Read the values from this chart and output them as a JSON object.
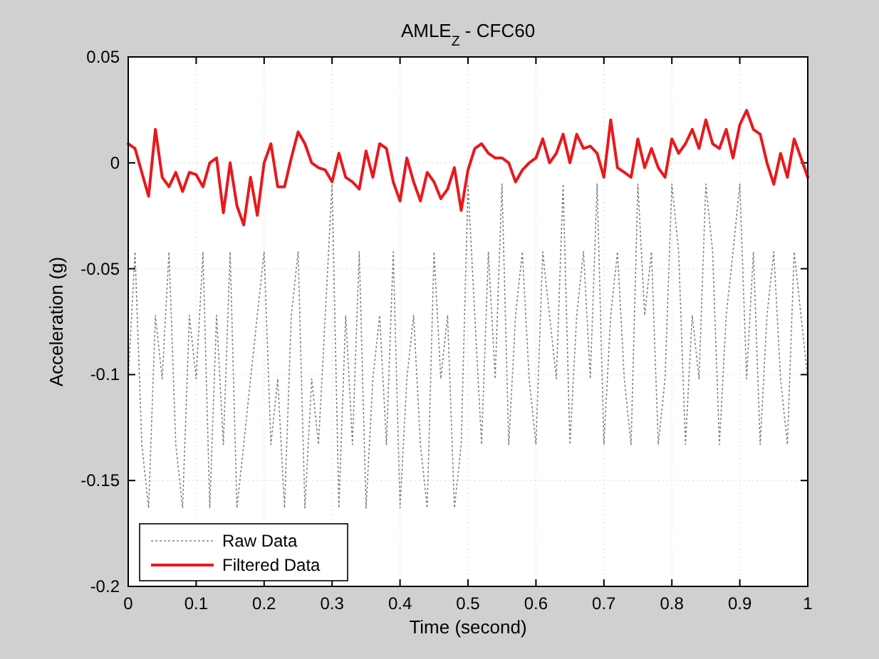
{
  "chart_data": {
    "type": "line",
    "title": "AMLE$_{Z}$ - CFC60",
    "xlabel": "Time (second)",
    "ylabel": "Acceleration (g)",
    "x": [
      0,
      0.01,
      0.02,
      0.03,
      0.04,
      0.05,
      0.06,
      0.07,
      0.08,
      0.09,
      0.1,
      0.11,
      0.12,
      0.13,
      0.14,
      0.15,
      0.16,
      0.17,
      0.18,
      0.19,
      0.2,
      0.21,
      0.22,
      0.23,
      0.24,
      0.25,
      0.26,
      0.27,
      0.28,
      0.29,
      0.3,
      0.31,
      0.32,
      0.33,
      0.34,
      0.35,
      0.36,
      0.37,
      0.38,
      0.39,
      0.4,
      0.41,
      0.42,
      0.43,
      0.44,
      0.45,
      0.46,
      0.47,
      0.48,
      0.49,
      0.5,
      0.51,
      0.52,
      0.53,
      0.54,
      0.55,
      0.56,
      0.57,
      0.58,
      0.59,
      0.6,
      0.61,
      0.62,
      0.63,
      0.64,
      0.65,
      0.66,
      0.67,
      0.68,
      0.69,
      0.7,
      0.71,
      0.72,
      0.73,
      0.74,
      0.75,
      0.76,
      0.77,
      0.78,
      0.79,
      0.8,
      0.81,
      0.82,
      0.83,
      0.84,
      0.85,
      0.86,
      0.87,
      0.88,
      0.89,
      0.9,
      0.91,
      0.92,
      0.93,
      0.94,
      0.95,
      0.96,
      0.97,
      0.98,
      0.99,
      1
    ],
    "series": [
      {
        "name": "Raw Data",
        "color": "#808080",
        "line_style": "dotted",
        "values": [
          -0.102,
          -0.042,
          -0.133,
          -0.163,
          -0.072,
          -0.102,
          -0.042,
          -0.133,
          -0.163,
          -0.072,
          -0.102,
          -0.042,
          -0.163,
          -0.072,
          -0.133,
          -0.042,
          -0.163,
          -0.133,
          -0.102,
          -0.072,
          -0.042,
          -0.133,
          -0.102,
          -0.163,
          -0.072,
          -0.042,
          -0.163,
          -0.102,
          -0.133,
          -0.072,
          -0.01,
          -0.163,
          -0.072,
          -0.133,
          -0.042,
          -0.163,
          -0.102,
          -0.072,
          -0.133,
          -0.042,
          -0.163,
          -0.102,
          -0.072,
          -0.133,
          -0.163,
          -0.042,
          -0.102,
          -0.072,
          -0.163,
          -0.133,
          -0.01,
          -0.072,
          -0.133,
          -0.042,
          -0.102,
          -0.01,
          -0.133,
          -0.072,
          -0.042,
          -0.102,
          -0.133,
          -0.042,
          -0.072,
          -0.102,
          -0.01,
          -0.133,
          -0.072,
          -0.042,
          -0.102,
          -0.01,
          -0.133,
          -0.072,
          -0.042,
          -0.102,
          -0.133,
          -0.01,
          -0.072,
          -0.042,
          -0.133,
          -0.102,
          -0.01,
          -0.042,
          -0.133,
          -0.072,
          -0.102,
          -0.01,
          -0.042,
          -0.133,
          -0.072,
          -0.042,
          -0.01,
          -0.102,
          -0.042,
          -0.133,
          -0.072,
          -0.042,
          -0.102,
          -0.133,
          -0.042,
          -0.072,
          -0.102
        ]
      },
      {
        "name": "Filtered Data",
        "color": "#e8191c",
        "line_style": "solid",
        "values": [
          0.009,
          0.0068,
          -0.0045,
          -0.0158,
          0.0158,
          -0.0068,
          -0.0113,
          -0.0045,
          -0.0135,
          -0.0045,
          -0.0056,
          -0.0113,
          0,
          0.0023,
          -0.0236,
          0,
          -0.0203,
          -0.0293,
          -0.0068,
          -0.0248,
          0,
          0.009,
          -0.0113,
          -0.0113,
          0.0023,
          0.0146,
          0.009,
          0,
          -0.0023,
          -0.0034,
          -0.009,
          0.0045,
          -0.0068,
          -0.009,
          -0.0124,
          0.0056,
          -0.0068,
          0.009,
          0.0068,
          -0.009,
          -0.018,
          0.0023,
          -0.009,
          -0.018,
          -0.0045,
          -0.009,
          -0.0169,
          -0.0124,
          -0.0023,
          -0.0225,
          -0.0034,
          0.0068,
          0.009,
          0.0045,
          0.0023,
          0.0023,
          0,
          -0.009,
          -0.0034,
          0,
          0.0023,
          0.0113,
          0,
          0.0045,
          0.0135,
          0,
          0.0135,
          0.0068,
          0.0079,
          0.0045,
          -0.0068,
          0.0203,
          -0.0023,
          -0.0045,
          -0.0068,
          0.0113,
          -0.0023,
          0.0068,
          -0.0023,
          -0.0068,
          0.0113,
          0.0045,
          0.009,
          0.0158,
          0.0068,
          0.0203,
          0.009,
          0.0068,
          0.0158,
          0.0023,
          0.018,
          0.0248,
          0.0158,
          0.0135,
          0,
          -0.0101,
          0.0045,
          -0.0068,
          0.0113,
          0.0023,
          -0.0068
        ]
      }
    ],
    "xlim": [
      0,
      1
    ],
    "xticks": [
      0,
      0.1,
      0.2,
      0.3,
      0.4,
      0.5,
      0.6,
      0.7,
      0.8,
      0.9,
      1
    ],
    "ylim": [
      -0.2,
      0.05
    ],
    "yticks": [
      -0.2,
      -0.15,
      -0.1,
      -0.05,
      0,
      0.05
    ],
    "grid": true,
    "legend": "bottom left"
  }
}
